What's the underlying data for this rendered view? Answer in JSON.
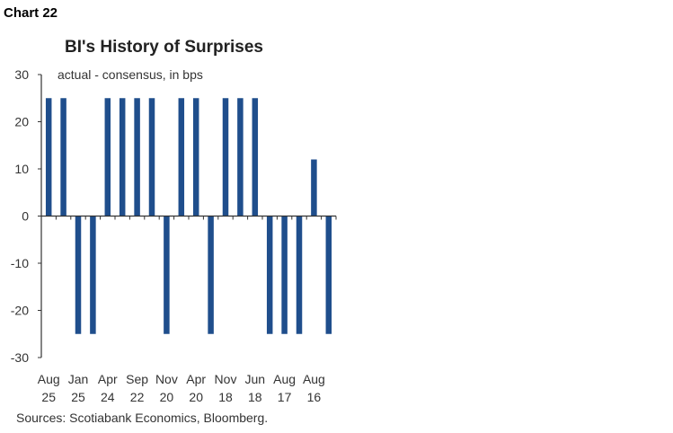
{
  "chart_label": "Chart 22",
  "source": "Sources: Scotiabank Economics, Bloomberg.",
  "colors": {
    "bar": "#1f4e8c",
    "axis": "#333333"
  },
  "chart_data": {
    "type": "bar",
    "title": "BI's History of Surprises",
    "ylabel": "actual - consensus, in bps",
    "ylim": [
      -30,
      30
    ],
    "yticks": [
      30,
      20,
      10,
      0,
      -10,
      -20,
      -30
    ],
    "x_tick_labels": [
      [
        "Aug",
        "25"
      ],
      [
        "Jan",
        "25"
      ],
      [
        "Apr",
        "24"
      ],
      [
        "Sep",
        "22"
      ],
      [
        "Nov",
        "20"
      ],
      [
        "Apr",
        "20"
      ],
      [
        "Nov",
        "18"
      ],
      [
        "Jun",
        "18"
      ],
      [
        "Aug",
        "17"
      ],
      [
        "Aug",
        "16"
      ]
    ],
    "values": [
      25,
      25,
      -25,
      -25,
      25,
      25,
      25,
      25,
      -25,
      25,
      25,
      -25,
      25,
      25,
      25,
      -25,
      -25,
      -25,
      12,
      -25
    ],
    "grid": false,
    "legend": "none"
  }
}
